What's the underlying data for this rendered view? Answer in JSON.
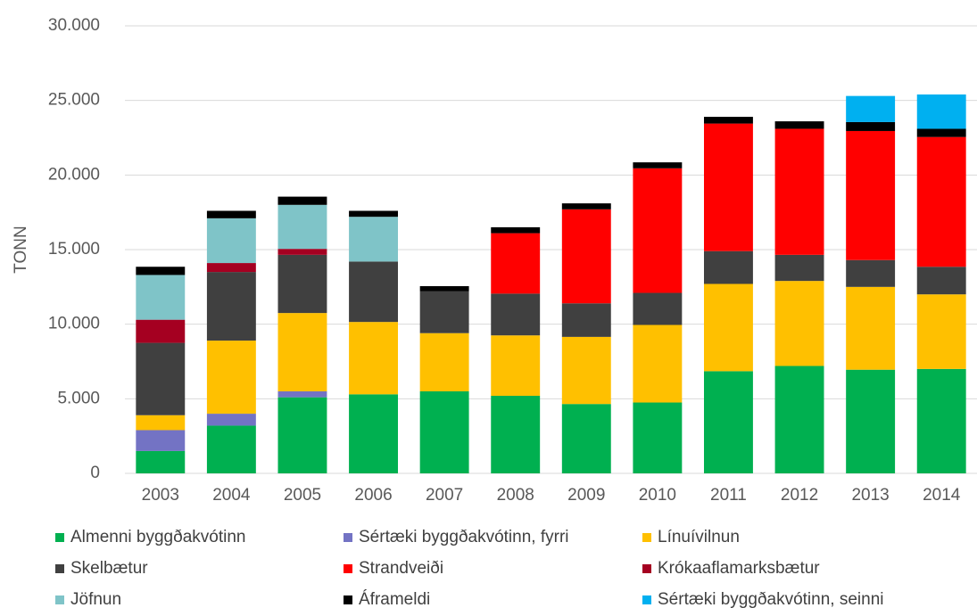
{
  "chart_data": {
    "type": "stacked_bar",
    "y_label": "TONN",
    "categories": [
      "2003",
      "2004",
      "2005",
      "2006",
      "2007",
      "2008",
      "2009",
      "2010",
      "2011",
      "2012",
      "2013",
      "2014"
    ],
    "series": [
      {
        "name": "Almenni byggðakvótinn",
        "color": "#00b050",
        "values": [
          1500,
          3200,
          5100,
          5300,
          5500,
          5200,
          4650,
          4750,
          6850,
          7200,
          6950,
          7000
        ]
      },
      {
        "name": "Sértæki byggðakvótinn, fyrri",
        "color": "#7373c4",
        "values": [
          1400,
          800,
          400,
          null,
          null,
          null,
          null,
          null,
          null,
          null,
          null,
          null
        ]
      },
      {
        "name": "Línuívilnun",
        "color": "#ffc000",
        "values": [
          1000,
          4900,
          5250,
          4850,
          3900,
          4050,
          4500,
          5200,
          5850,
          5700,
          5550,
          5000
        ]
      },
      {
        "name": "Skelbætur",
        "color": "#404040",
        "values": [
          4850,
          4600,
          3900,
          4050,
          2800,
          2800,
          2250,
          2150,
          2200,
          1750,
          1800,
          1850
        ]
      },
      {
        "name": "Strandveiði",
        "color": "#ff0000",
        "values": [
          null,
          null,
          null,
          null,
          null,
          4050,
          6300,
          8350,
          8550,
          8450,
          8650,
          8700
        ]
      },
      {
        "name": "Krókaaflamarksbætur",
        "color": "#a50021",
        "values": [
          1550,
          600,
          400,
          null,
          null,
          null,
          null,
          null,
          null,
          null,
          null,
          null
        ]
      },
      {
        "name": "Jöfnun",
        "color": "#7fc4c8",
        "values": [
          3000,
          3000,
          2950,
          3000,
          null,
          null,
          null,
          null,
          null,
          null,
          null,
          null
        ]
      },
      {
        "name": "Áframeldi",
        "color": "#000000",
        "values": [
          550,
          500,
          550,
          400,
          350,
          400,
          400,
          400,
          450,
          500,
          600,
          550
        ]
      },
      {
        "name": "Sértæki byggðakvótinn, seinni",
        "color": "#00b0f0",
        "values": [
          null,
          null,
          null,
          null,
          null,
          null,
          null,
          null,
          null,
          null,
          1750,
          2300
        ]
      }
    ],
    "ylim": [
      0,
      30000
    ],
    "yticks": [
      0,
      {
        "value": 5000,
        "label": "5.000"
      },
      {
        "value": 10000,
        "label": "10.000"
      },
      {
        "value": 15000,
        "label": "15.000"
      },
      {
        "value": 20000,
        "label": "20.000"
      },
      {
        "value": 25000,
        "label": "25.000"
      },
      {
        "value": 30000,
        "label": "30.000"
      }
    ],
    "grid": true
  }
}
